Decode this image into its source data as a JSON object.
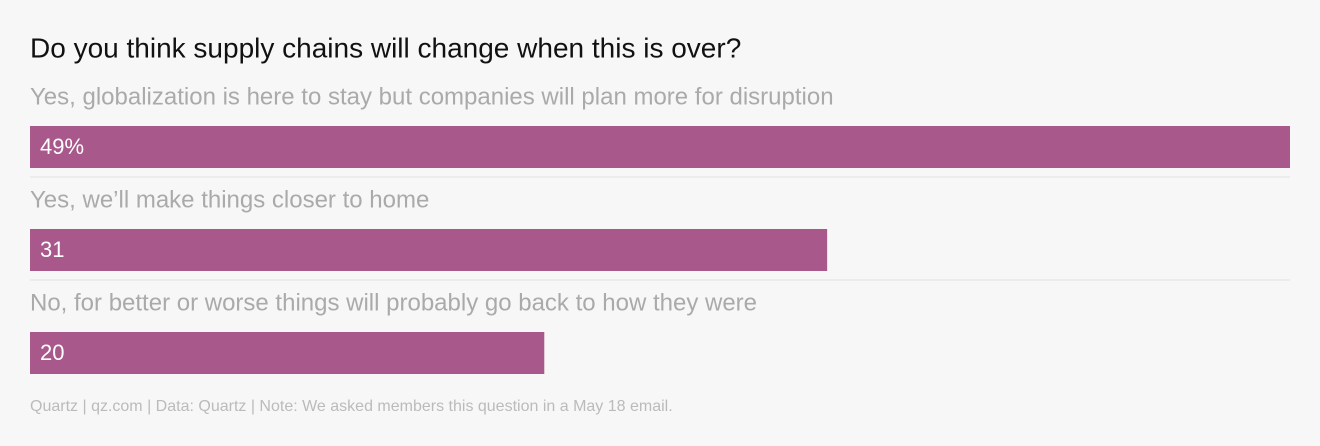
{
  "chart_data": {
    "type": "hbar",
    "title": "Do you think supply chains will change when this is over?",
    "categories": [
      "Yes, globalization is here to stay but companies will plan more for disruption",
      "Yes, we’ll make things closer to home",
      "No, for better or worse things will probably go back to how they were"
    ],
    "values": [
      49,
      31,
      20
    ],
    "value_labels": [
      "49%",
      "31",
      "20"
    ],
    "color": "#a8588a",
    "footer": "Quartz | qz.com | Data: Quartz | Note: We asked members this question in a May 18 email."
  }
}
